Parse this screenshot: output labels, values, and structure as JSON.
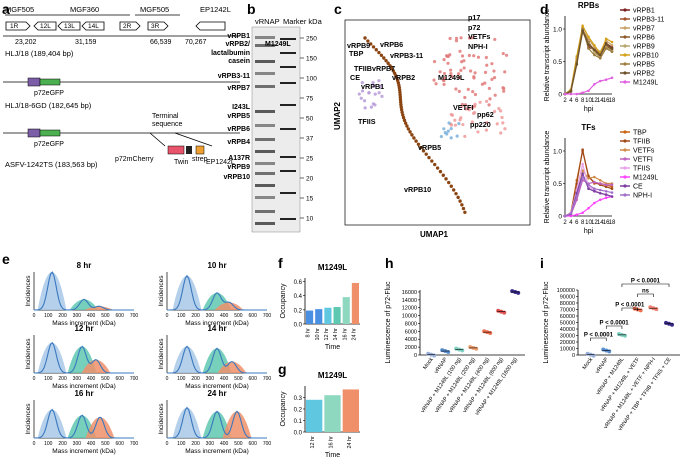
{
  "figure": {
    "panel_labels": {
      "a": "a",
      "b": "b",
      "c": "c",
      "d": "d",
      "e": "e",
      "f": "f",
      "g": "g",
      "h": "h",
      "i": "i"
    },
    "a": {
      "genes": [
        "MGF505",
        "MGF360",
        "MGF505",
        "EP1242L"
      ],
      "sub_genes": [
        "1R",
        "12L",
        "13L",
        "14L",
        "2R",
        "3R"
      ],
      "positions": [
        "23,202",
        "31,159",
        "66,539",
        "70,267"
      ],
      "strain1": "HLJ/18 (189,404 bp)",
      "gfp1": "p72eGFP",
      "strain2": "HLJ/18-6GD (182,645 bp)",
      "gfp2": "p72eGFP",
      "terminal": "Terminal",
      "sequence": "sequence",
      "strain3": "ASFV-1242TS (183,563 bp)",
      "cherry": "p72mCherry",
      "twin": "Twin",
      "strep": "strep",
      "ep": "EP1242L"
    },
    "b": {
      "header_lane1": "vRNAP",
      "header_lane2": "Marker kDa",
      "labels": [
        {
          "text": "vRPB1",
          "color": "#2b6cb0"
        },
        {
          "text": "vRPB2/",
          "color": "#2b6cb0"
        },
        {
          "text": "M1249L",
          "color": "#d62828"
        },
        {
          "text": "lactalbumin",
          "color": "#9a9a9a"
        },
        {
          "text": "casein",
          "color": "#9a9a9a"
        },
        {
          "text": "vRPB3-11",
          "color": "#2b6cb0"
        },
        {
          "text": "vRPB7",
          "color": "#2b6cb0"
        },
        {
          "text": "I243L",
          "color": "#d62828"
        },
        {
          "text": "vRPB5",
          "color": "#2b6cb0"
        },
        {
          "text": "vRPB6",
          "color": "#2b6cb0"
        },
        {
          "text": "vRPB4",
          "color": "#2b6cb0"
        },
        {
          "text": "A137R",
          "color": "#9a9a9a"
        },
        {
          "text": "vRPB9",
          "color": "#2b6cb0"
        },
        {
          "text": "vRPB10",
          "color": "#2b6cb0"
        }
      ],
      "markers": [
        "250",
        "150",
        "100",
        "75",
        "50",
        "37",
        "25",
        "20",
        "15",
        "10"
      ]
    },
    "c": {
      "xlabel": "UMAP1",
      "ylabel": "UMAP2",
      "labels": [
        "vRPB9",
        "TBP",
        "TFIIB",
        "CE",
        "vRPB1",
        "vRPB6",
        "vRPB3-11",
        "vRPB7",
        "vRPB2",
        "TFIIS",
        "vRPB10",
        "vRPB5",
        "p17",
        "p72",
        "VETFs",
        "NPH-I",
        "M1249L",
        "pp62",
        "pp220",
        "VETFI"
      ]
    },
    "d": {
      "top": {
        "title": "RPBs",
        "ylabel": "Relative transcript abundance",
        "xlabel": "hpi",
        "xticks": [
          "2",
          "4",
          "6",
          "8",
          "10",
          "12",
          "14",
          "16",
          "18"
        ],
        "yticks": [
          "0",
          "0.5",
          "1.0"
        ],
        "series": [
          {
            "name": "vRPB1",
            "color": "#7a1f1f"
          },
          {
            "name": "vRPB3-11",
            "color": "#a0522d"
          },
          {
            "name": "vRPB7",
            "color": "#c8a165"
          },
          {
            "name": "vRPB6",
            "color": "#8b5a2b"
          },
          {
            "name": "vRPB9",
            "color": "#b8a36a"
          },
          {
            "name": "vRPB10",
            "color": "#d4a017"
          },
          {
            "name": "vRPB5",
            "color": "#9c7c3c"
          },
          {
            "name": "vRPB2",
            "color": "#6b4f2b"
          },
          {
            "name": "M1249L",
            "color": "#e060e0"
          }
        ]
      },
      "bottom": {
        "title": "TFs",
        "ylabel": "Relative transcript abundance",
        "xlabel": "hpi",
        "xticks": [
          "2",
          "4",
          "6",
          "8",
          "10",
          "12",
          "14",
          "16",
          "18"
        ],
        "yticks": [
          "0",
          "0.5",
          "1.0"
        ],
        "series": [
          {
            "name": "TBP",
            "color": "#c86414"
          },
          {
            "name": "TFIIB",
            "color": "#a04a1a"
          },
          {
            "name": "VETFs",
            "color": "#d08a4a"
          },
          {
            "name": "VETFI",
            "color": "#c060c0"
          },
          {
            "name": "TFIIS",
            "color": "#e8a0e8"
          },
          {
            "name": "M1249L",
            "color": "#ff44ff"
          },
          {
            "name": "CE",
            "color": "#7b3fa0"
          },
          {
            "name": "NPH-I",
            "color": "#a070c8"
          }
        ]
      }
    },
    "e": {
      "titles": [
        "8 hr",
        "10 hr",
        "12 hr",
        "14 hr",
        "16 hr",
        "24 hr"
      ],
      "ylabel": "Incidences",
      "xlabel": "Mass increment (kDa)",
      "xticks": [
        "0",
        "100",
        "200",
        "300",
        "400",
        "500",
        "600",
        "700"
      ]
    },
    "f": {
      "title": "M1249L",
      "ylabel": "Occupancy",
      "xlabel": "Time",
      "yticks": [
        "0.0",
        "0.2",
        "0.4",
        "0.6"
      ]
    },
    "g": {
      "title": "M1249L",
      "ylabel": "Occupancy",
      "xlabel": "Time",
      "yticks": [
        "0.0",
        "0.1",
        "0.2",
        "0.3"
      ]
    },
    "h": {
      "ylabel": "Luminescence of p72-Fluc",
      "yticks": [
        "0",
        "2000",
        "4000",
        "6000",
        "8000",
        "10000",
        "12000",
        "14000",
        "16000"
      ]
    },
    "i": {
      "ylabel": "Luminescence of p72-Fluc",
      "yticks": [
        "0",
        "10000",
        "20000",
        "30000",
        "40000",
        "50000",
        "60000",
        "70000",
        "80000",
        "90000",
        "100000"
      ],
      "significance": [
        "P < 0.0001",
        "P < 0.0001",
        "P < 0.0001",
        "ns",
        "P < 0.0001"
      ]
    }
  },
  "chart_data": [
    {
      "panel": "d-top",
      "type": "line",
      "title": "RPBs",
      "xlabel": "hpi",
      "ylabel": "Relative transcript abundance",
      "x": [
        2,
        4,
        6,
        8,
        10,
        12,
        14,
        16,
        18
      ],
      "ylim": [
        0,
        1.2
      ],
      "series": [
        {
          "name": "vRPB1",
          "values": [
            0.0,
            0.05,
            0.5,
            1.0,
            0.72,
            0.68,
            0.62,
            0.78,
            0.72
          ]
        },
        {
          "name": "vRPB3-11",
          "values": [
            0.0,
            0.06,
            0.55,
            1.02,
            0.75,
            0.7,
            0.6,
            0.76,
            0.7
          ]
        },
        {
          "name": "vRPB7",
          "values": [
            0.0,
            0.04,
            0.48,
            1.0,
            0.85,
            0.72,
            0.65,
            0.82,
            0.75
          ]
        },
        {
          "name": "vRPB6",
          "values": [
            0.0,
            0.05,
            0.52,
            0.98,
            0.8,
            0.66,
            0.58,
            0.74,
            0.68
          ]
        },
        {
          "name": "vRPB9",
          "values": [
            0.0,
            0.03,
            0.45,
            0.95,
            0.78,
            0.64,
            0.56,
            0.72,
            0.66
          ]
        },
        {
          "name": "vRPB10",
          "values": [
            0.0,
            0.07,
            0.58,
            1.05,
            0.88,
            0.75,
            0.62,
            0.85,
            0.8
          ]
        },
        {
          "name": "vRPB5",
          "values": [
            0.0,
            0.05,
            0.5,
            1.0,
            0.7,
            0.6,
            0.55,
            0.7,
            0.65
          ]
        },
        {
          "name": "vRPB2",
          "values": [
            0.0,
            0.04,
            0.46,
            0.97,
            0.76,
            0.68,
            0.6,
            0.78,
            0.7
          ]
        },
        {
          "name": "M1249L",
          "values": [
            0.0,
            0.0,
            0.0,
            0.02,
            0.05,
            0.15,
            0.2,
            0.22,
            0.25
          ]
        }
      ]
    },
    {
      "panel": "d-bottom",
      "type": "line",
      "title": "TFs",
      "xlabel": "hpi",
      "ylabel": "Relative transcript abundance",
      "x": [
        2,
        4,
        6,
        8,
        10,
        12,
        14,
        16,
        18
      ],
      "ylim": [
        0,
        1.2
      ],
      "series": [
        {
          "name": "TBP",
          "values": [
            0.0,
            0.05,
            0.55,
            1.0,
            0.62,
            0.5,
            0.5,
            0.48,
            0.45
          ]
        },
        {
          "name": "TFIIB",
          "values": [
            0.0,
            0.04,
            0.5,
            1.02,
            0.6,
            0.52,
            0.48,
            0.45,
            0.42
          ]
        },
        {
          "name": "VETFs",
          "values": [
            0.0,
            0.02,
            0.3,
            0.7,
            0.58,
            0.6,
            0.55,
            0.5,
            0.5
          ]
        },
        {
          "name": "VETFI",
          "values": [
            0.0,
            0.02,
            0.25,
            0.55,
            0.5,
            0.52,
            0.5,
            0.48,
            0.48
          ]
        },
        {
          "name": "TFIIS",
          "values": [
            0.0,
            0.05,
            0.4,
            0.8,
            0.45,
            0.4,
            0.35,
            0.32,
            0.3
          ]
        },
        {
          "name": "M1249L",
          "values": [
            0.0,
            0.0,
            0.02,
            0.05,
            0.12,
            0.2,
            0.25,
            0.28,
            0.3
          ]
        },
        {
          "name": "CE",
          "values": [
            0.0,
            0.03,
            0.35,
            0.65,
            0.42,
            0.38,
            0.35,
            0.33,
            0.3
          ]
        },
        {
          "name": "NPH-I",
          "values": [
            0.0,
            0.04,
            0.3,
            0.6,
            0.48,
            0.42,
            0.4,
            0.38,
            0.36
          ]
        }
      ]
    },
    {
      "panel": "f",
      "type": "bar",
      "title": "M1249L",
      "xlabel": "Time",
      "ylabel": "Occupancy",
      "categories": [
        "8 hr",
        "10 hr",
        "12 hr",
        "14 hr",
        "16 hr",
        "24 hr"
      ],
      "values": [
        0.19,
        0.21,
        0.23,
        0.24,
        0.38,
        0.58
      ],
      "ylim": [
        0,
        0.65
      ]
    },
    {
      "panel": "g",
      "type": "bar",
      "title": "M1249L",
      "xlabel": "Time",
      "ylabel": "Occupancy",
      "categories": [
        "12 hr",
        "16 hr",
        "24 hr"
      ],
      "values": [
        0.28,
        0.32,
        0.37
      ],
      "ylim": [
        0,
        0.4
      ]
    },
    {
      "panel": "h",
      "type": "scatter",
      "ylabel": "Luminescence of p72-Fluc",
      "categories": [
        "Mock",
        "vRNAP",
        "vRNAP + M1249L (100 ng)",
        "vRNAP + M1249L (200 ng)",
        "vRNAP + M1249L (400 ng)",
        "vRNAP + M1249L (800 ng)",
        "vRNAP + M1249L (1600 ng)"
      ],
      "values": [
        100,
        1000,
        1400,
        1800,
        5800,
        11000,
        16000
      ],
      "ylim": [
        0,
        16500
      ]
    },
    {
      "panel": "i",
      "type": "scatter",
      "ylabel": "Luminescence of p72-Fluc",
      "categories": [
        "Mock",
        "vRNAP",
        "vRNAP + M1249L",
        "vRNAP + M1249L + VETF",
        "vRNAP + M1249L + VETF + NPH-I",
        "vRNAP + TBP + TFIIB + TFIIS + CE"
      ],
      "values": [
        500,
        7000,
        31000,
        70000,
        72000,
        48000
      ],
      "ylim": [
        0,
        100000
      ]
    }
  ]
}
